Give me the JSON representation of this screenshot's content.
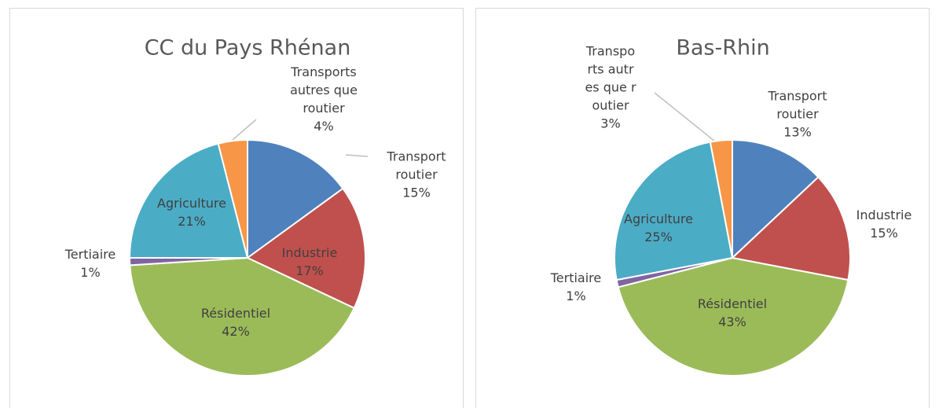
{
  "chart_data": [
    {
      "type": "pie",
      "title": "CC du Pays Rhénan",
      "categories": [
        "Transport routier",
        "Industrie",
        "Résidentiel",
        "Tertiaire",
        "Agriculture",
        "Transports autres que routier"
      ],
      "values": [
        15,
        17,
        42,
        1,
        21,
        4
      ],
      "value_labels": [
        "15%",
        "17%",
        "42%",
        "1%",
        "21%",
        "4%"
      ],
      "colors": [
        "#4f81bd",
        "#c0504d",
        "#9bbb59",
        "#8064a2",
        "#4bacc6",
        "#f79646"
      ]
    },
    {
      "type": "pie",
      "title": "Bas-Rhin",
      "categories": [
        "Transport routier",
        "Industrie",
        "Résidentiel",
        "Tertiaire",
        "Agriculture",
        "Transports autres que routier"
      ],
      "values": [
        13,
        15,
        43,
        1,
        25,
        3
      ],
      "value_labels": [
        "13%",
        "15%",
        "43%",
        "1%",
        "25%",
        "3%"
      ],
      "colors": [
        "#4f81bd",
        "#c0504d",
        "#9bbb59",
        "#8064a2",
        "#4bacc6",
        "#f79646"
      ]
    }
  ]
}
